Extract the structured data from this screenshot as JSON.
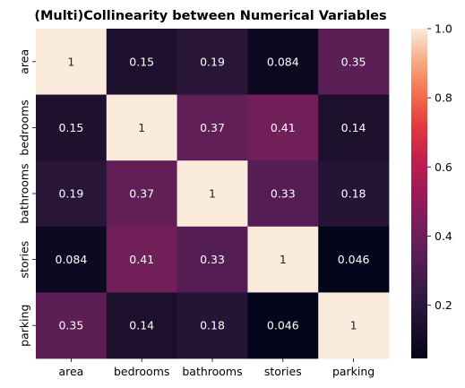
{
  "chart_data": {
    "type": "heatmap",
    "title": "(Multi)Collinearity between Numerical Variables",
    "variables": [
      "area",
      "bedrooms",
      "bathrooms",
      "stories",
      "parking"
    ],
    "matrix": [
      [
        1,
        0.15,
        0.19,
        0.084,
        0.35
      ],
      [
        0.15,
        1,
        0.37,
        0.41,
        0.14
      ],
      [
        0.19,
        0.37,
        1,
        0.33,
        0.18
      ],
      [
        0.084,
        0.41,
        0.33,
        1,
        0.046
      ],
      [
        0.35,
        0.14,
        0.18,
        0.046,
        1
      ]
    ],
    "cell_labels": [
      [
        "1",
        "0.15",
        "0.19",
        "0.084",
        "0.35"
      ],
      [
        "0.15",
        "1",
        "0.37",
        "0.41",
        "0.14"
      ],
      [
        "0.19",
        "0.37",
        "1",
        "0.33",
        "0.18"
      ],
      [
        "0.084",
        "0.41",
        "0.33",
        "1",
        "0.046"
      ],
      [
        "0.35",
        "0.14",
        "0.18",
        "0.046",
        "1"
      ]
    ],
    "colorbar": {
      "range": [
        0.046,
        1.0
      ],
      "ticks": [
        0.2,
        0.4,
        0.6,
        0.8,
        1.0
      ],
      "tick_labels": [
        "0.2",
        "0.4",
        "0.6",
        "0.8",
        "1.0"
      ],
      "colormap": "rocket",
      "placement": "right"
    },
    "xlabel": "",
    "ylabel": "",
    "grid": false
  }
}
